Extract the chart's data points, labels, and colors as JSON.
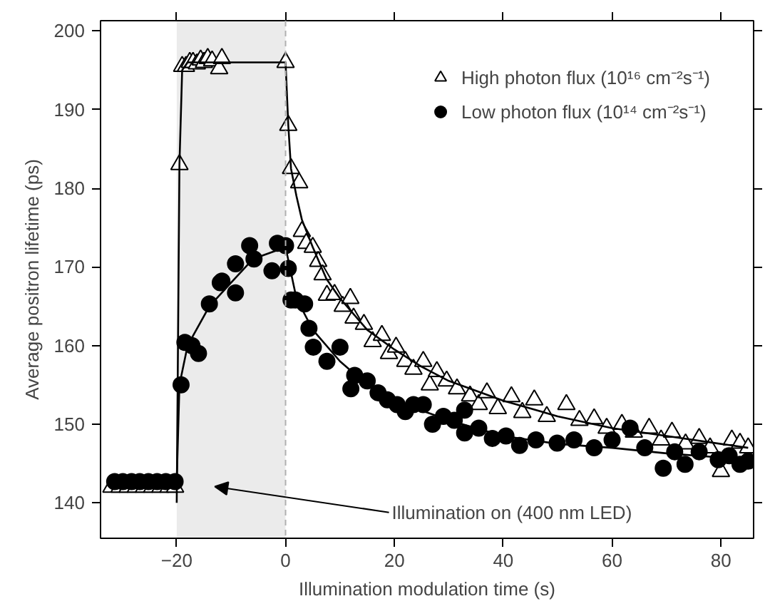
{
  "chart_data": {
    "type": "scatter",
    "xlabel": "Illumination modulation time (s)",
    "ylabel": "Average positron lifetime (ps)",
    "xlim": [
      -34,
      86
    ],
    "ylim": [
      135.5,
      201.3
    ],
    "xticks": [
      -20,
      0,
      20,
      40,
      60,
      80
    ],
    "yticks": [
      140,
      150,
      160,
      170,
      180,
      190,
      200
    ],
    "grid": false,
    "legend": "top right",
    "bands": [
      {
        "axis": "x",
        "from": -20,
        "to": 0,
        "color": "#ebebeb"
      }
    ],
    "ref_lines": [
      {
        "axis": "x",
        "value": 0,
        "color": "#b0b0b0",
        "line_style": "dashed"
      }
    ],
    "annotations": [
      "Illumination on (400 nm LED)"
    ],
    "series": [
      {
        "name": "High photon flux (10¹⁶ cm⁻²s⁻¹)",
        "marker": "triangle",
        "color": "#000000",
        "x": [
          -32,
          -30.5,
          -29,
          -27.5,
          -26,
          -24.5,
          -23,
          -21.5,
          -20.3,
          -19.5,
          -19,
          -18.3,
          -17.6,
          -17,
          -16.3,
          -15.6,
          -15,
          -14.3,
          -13.5,
          -12.2,
          -11.7,
          0,
          0.5,
          1,
          2.5,
          3,
          3.8,
          5,
          6,
          6.8,
          7.6,
          9,
          10.5,
          11.9,
          12.5,
          14.4,
          16,
          17.7,
          19,
          20.3,
          22,
          23.5,
          25.3,
          26.5,
          27.8,
          29.6,
          31.5,
          33.9,
          35.5,
          37,
          39,
          41.5,
          43.5,
          45.7,
          48,
          51.6,
          54,
          56.7,
          59,
          61.8,
          64,
          66.8,
          69,
          71,
          73.5,
          76,
          78,
          80,
          82,
          83.5,
          85
        ],
        "values": [
          142,
          142,
          142,
          142,
          142,
          142,
          142,
          142,
          142,
          183,
          195.5,
          195.5,
          196,
          196,
          195.8,
          196.3,
          196,
          196.5,
          196.2,
          195.2,
          196.5,
          196,
          188,
          182.5,
          180.7,
          174.5,
          173,
          172.5,
          170.7,
          169,
          166.4,
          166.5,
          165,
          166,
          163.5,
          162.7,
          160.5,
          161.3,
          159,
          159.8,
          158,
          157,
          158,
          155,
          156.7,
          155.5,
          154.5,
          153.6,
          152.5,
          154,
          152,
          153.5,
          151.5,
          153.1,
          151,
          152.5,
          150.5,
          150.7,
          149.5,
          150,
          149,
          149.5,
          148,
          149,
          147.5,
          148.2,
          147,
          144,
          148,
          147.6,
          147
        ]
      },
      {
        "name": "Low photon flux (10¹⁴ cm⁻²s⁻¹)",
        "marker": "circle",
        "color": "#000000",
        "x": [
          -31.4,
          -29.9,
          -28.3,
          -26.8,
          -25.2,
          -23.6,
          -22,
          -20.3,
          -19.2,
          -18.5,
          -17.2,
          -16,
          -14,
          -12,
          -11.7,
          -9.2,
          -9.2,
          -6.6,
          -5.8,
          -2.5,
          -1.5,
          0,
          0.5,
          1,
          1.8,
          3.5,
          4.3,
          5.1,
          7.6,
          10,
          12,
          12.7,
          15,
          17,
          18.7,
          20.5,
          22,
          23.5,
          25.3,
          27,
          29,
          31,
          32.9,
          32.9,
          35.5,
          38,
          40.5,
          43,
          46,
          49.9,
          53,
          56.7,
          60,
          63.3,
          66,
          69.4,
          71.5,
          73.4,
          76,
          79.5,
          81.5,
          83.5,
          85
        ],
        "values": [
          142.7,
          142.7,
          142.7,
          142.7,
          142.7,
          142.7,
          142.7,
          142.7,
          155,
          160.4,
          160,
          159,
          165.3,
          168,
          168.2,
          166.7,
          170.4,
          172.7,
          171,
          169.5,
          173,
          172.7,
          169.8,
          165.8,
          165.8,
          165.3,
          162.2,
          159.8,
          158,
          159.8,
          154.5,
          156.2,
          155.5,
          154,
          153.1,
          152.5,
          151.6,
          152.5,
          152.5,
          150,
          151,
          150.5,
          148.9,
          151.8,
          149.5,
          148.2,
          148.5,
          147.3,
          148,
          147.6,
          148,
          147,
          148,
          149.5,
          147,
          144.4,
          146.5,
          144.9,
          146.5,
          145.5,
          146,
          144.9,
          145.3
        ]
      },
      {
        "type": "line",
        "color": "#000000",
        "x": [
          -20,
          -19.5,
          -19,
          -18,
          0,
          0.5,
          1,
          2,
          3,
          5,
          7.5,
          10,
          15,
          20,
          25,
          30,
          40,
          50,
          60,
          70,
          85
        ],
        "values": [
          140,
          183,
          195,
          196,
          196,
          188,
          182.5,
          179,
          176,
          172.5,
          168.5,
          166,
          162,
          159.5,
          157.3,
          155.5,
          153,
          151,
          149.5,
          148.5,
          147
        ]
      },
      {
        "type": "line",
        "color": "#000000",
        "x": [
          -32,
          -20,
          -19.5,
          -18,
          -14,
          -10,
          -6,
          -2,
          0,
          2,
          5,
          10,
          15,
          20,
          30,
          40,
          50,
          60,
          70,
          85
        ],
        "values": [
          142.7,
          142.7,
          155,
          160,
          165,
          168,
          171,
          172,
          172.5,
          166,
          162,
          158,
          155,
          153,
          150.5,
          148.5,
          147.5,
          147,
          146.3,
          145.5
        ]
      }
    ]
  }
}
